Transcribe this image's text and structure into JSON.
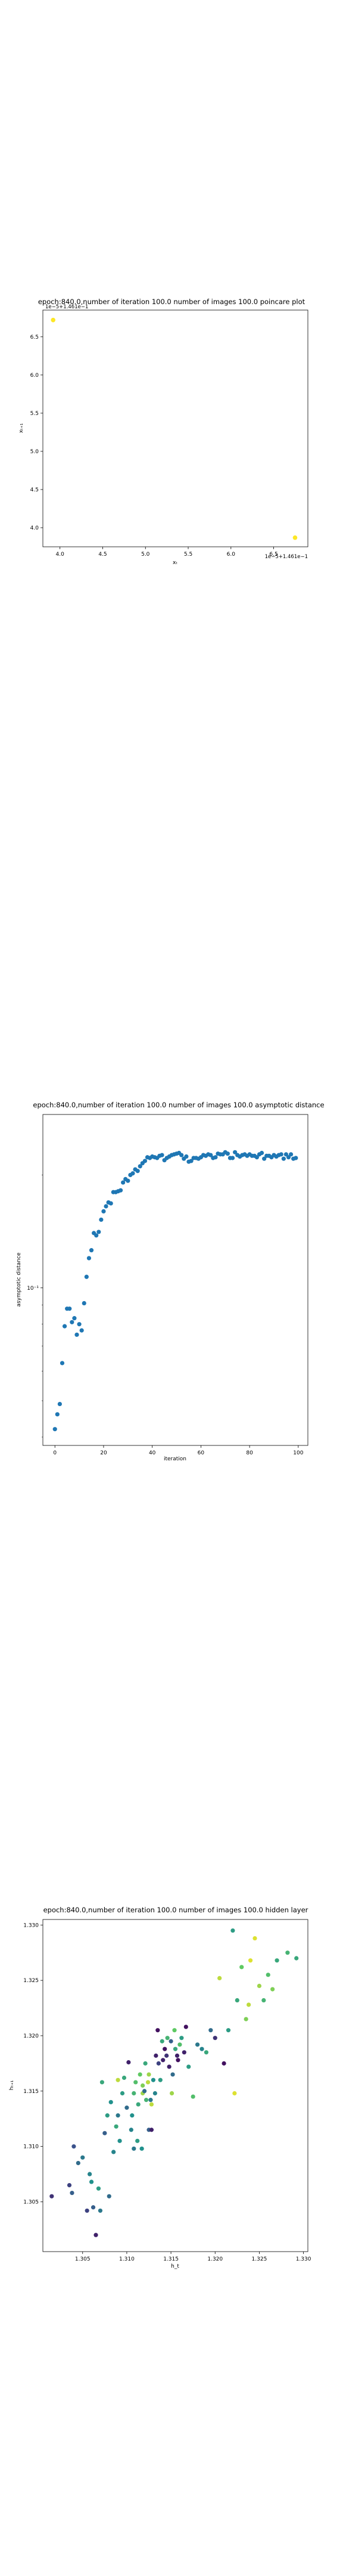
{
  "charts": [
    {
      "type": "scatter",
      "title": "epoch:840.0,number of iteration 100.0 number of images 100.0 poincare plot",
      "xlabel": "xₜ",
      "ylabel": "xₜ₊₁",
      "xlim": [
        3.8,
        6.9
      ],
      "ylim": [
        3.75,
        6.85
      ],
      "x_ticks": [
        4.0,
        4.5,
        5.0,
        5.5,
        6.0,
        6.5
      ],
      "x_tick_labels": [
        "4.0",
        "4.5",
        "5.0",
        "5.5",
        "6.0",
        "6.5"
      ],
      "y_ticks": [
        4.0,
        4.5,
        5.0,
        5.5,
        6.0,
        6.5
      ],
      "y_tick_labels": [
        "4.0",
        "4.5",
        "5.0",
        "5.5",
        "6.0",
        "6.5"
      ],
      "x_offset_text": "1e−5+1.461e−1",
      "y_offset_text": "1e−5+1.461e−1",
      "scale": "linear",
      "grid": false,
      "points": [
        {
          "x": 3.92,
          "y": 6.72,
          "color": "#fde725"
        },
        {
          "x": 6.75,
          "y": 3.87,
          "color": "#fde725"
        }
      ]
    },
    {
      "type": "scatter",
      "title": "epoch:840.0,number of iteration 100.0  number of images 100.0 asymptotic distance",
      "xlabel": "iteration",
      "ylabel": "asymptotic distance",
      "xlim": [
        -4.95,
        103.95
      ],
      "ylim": [
        0.038,
        0.29
      ],
      "scale_y": "log",
      "x_ticks": [
        0,
        20,
        40,
        60,
        80,
        100
      ],
      "x_tick_labels": [
        "0",
        "20",
        "40",
        "60",
        "80",
        "100"
      ],
      "y_major_ticks": [
        0.1
      ],
      "y_tick_labels": [
        "10⁻¹"
      ],
      "y_minor_ticks": [
        0.04,
        0.05,
        0.06,
        0.07,
        0.08,
        0.09,
        0.2
      ],
      "grid": false,
      "marker_color": "#1f77b4",
      "x": [
        0,
        1,
        2,
        3,
        4,
        5,
        6,
        7,
        8,
        9,
        10,
        11,
        12,
        13,
        14,
        15,
        16,
        17,
        18,
        19,
        20,
        21,
        22,
        23,
        24,
        25,
        26,
        27,
        28,
        29,
        30,
        31,
        32,
        33,
        34,
        35,
        36,
        37,
        38,
        39,
        40,
        41,
        42,
        43,
        44,
        45,
        46,
        47,
        48,
        49,
        50,
        51,
        52,
        53,
        54,
        55,
        56,
        57,
        58,
        59,
        60,
        61,
        62,
        63,
        64,
        65,
        66,
        67,
        68,
        69,
        70,
        71,
        72,
        73,
        74,
        75,
        76,
        77,
        78,
        79,
        80,
        81,
        82,
        83,
        84,
        85,
        86,
        87,
        88,
        89,
        90,
        91,
        92,
        93,
        94,
        95,
        96,
        97,
        98,
        99
      ],
      "y": [
        0.042,
        0.046,
        0.049,
        0.063,
        0.079,
        0.088,
        0.088,
        0.081,
        0.083,
        0.075,
        0.08,
        0.077,
        0.091,
        0.107,
        0.12,
        0.126,
        0.14,
        0.138,
        0.141,
        0.152,
        0.16,
        0.165,
        0.169,
        0.168,
        0.18,
        0.18,
        0.181,
        0.182,
        0.191,
        0.195,
        0.193,
        0.2,
        0.202,
        0.207,
        0.205,
        0.211,
        0.215,
        0.218,
        0.223,
        0.222,
        0.224,
        0.223,
        0.222,
        0.225,
        0.226,
        0.219,
        0.222,
        0.224,
        0.226,
        0.227,
        0.228,
        0.229,
        0.226,
        0.221,
        0.224,
        0.217,
        0.218,
        0.222,
        0.222,
        0.221,
        0.223,
        0.226,
        0.225,
        0.227,
        0.226,
        0.222,
        0.223,
        0.228,
        0.227,
        0.227,
        0.23,
        0.228,
        0.222,
        0.222,
        0.23,
        0.226,
        0.224,
        0.226,
        0.227,
        0.225,
        0.227,
        0.225,
        0.225,
        0.223,
        0.227,
        0.229,
        0.221,
        0.225,
        0.225,
        0.223,
        0.226,
        0.224,
        0.226,
        0.227,
        0.221,
        0.227,
        0.223,
        0.227,
        0.221,
        0.222
      ]
    },
    {
      "type": "scatter",
      "title": "epoch:840.0,number of iteration 100.0  number of images 100.0 hidden layer",
      "xlabel": "h_t",
      "ylabel": "hₜ₊₁",
      "xlim": [
        1.3005,
        1.3305
      ],
      "ylim": [
        1.3005,
        1.3305
      ],
      "x_ticks": [
        1.305,
        1.31,
        1.315,
        1.32,
        1.325,
        1.33
      ],
      "x_tick_labels": [
        "1.305",
        "1.310",
        "1.315",
        "1.320",
        "1.325",
        "1.330"
      ],
      "y_ticks": [
        1.305,
        1.31,
        1.315,
        1.32,
        1.325,
        1.33
      ],
      "y_tick_labels": [
        "1.305",
        "1.310",
        "1.315",
        "1.320",
        "1.325",
        "1.330"
      ],
      "colormap": "viridis",
      "grid": false,
      "points": [
        [
          1.3015,
          1.3055,
          0.15
        ],
        [
          1.3035,
          1.3065,
          0.2
        ],
        [
          1.3038,
          1.3058,
          0.3
        ],
        [
          1.304,
          1.31,
          0.25
        ],
        [
          1.3045,
          1.3085,
          0.35
        ],
        [
          1.305,
          1.309,
          0.4
        ],
        [
          1.3055,
          1.3042,
          0.2
        ],
        [
          1.3058,
          1.3075,
          0.45
        ],
        [
          1.306,
          1.3068,
          0.5
        ],
        [
          1.3062,
          1.3045,
          0.3
        ],
        [
          1.3065,
          1.302,
          0.1
        ],
        [
          1.3068,
          1.3062,
          0.55
        ],
        [
          1.307,
          1.3042,
          0.4
        ],
        [
          1.3072,
          1.3158,
          0.6
        ],
        [
          1.3075,
          1.3112,
          0.3
        ],
        [
          1.3078,
          1.3128,
          0.55
        ],
        [
          1.308,
          1.3055,
          0.35
        ],
        [
          1.3082,
          1.314,
          0.5
        ],
        [
          1.3085,
          1.3095,
          0.45
        ],
        [
          1.3088,
          1.3118,
          0.6
        ],
        [
          1.309,
          1.3128,
          0.4
        ],
        [
          1.3092,
          1.3105,
          0.5
        ],
        [
          1.3095,
          1.3148,
          0.55
        ],
        [
          1.3097,
          1.3162,
          0.6
        ],
        [
          1.31,
          1.3135,
          0.35
        ],
        [
          1.3102,
          1.3176,
          0.1
        ],
        [
          1.3105,
          1.3115,
          0.45
        ],
        [
          1.3106,
          1.3128,
          0.5
        ],
        [
          1.3108,
          1.3148,
          0.65
        ],
        [
          1.311,
          1.3158,
          0.7
        ],
        [
          1.3112,
          1.3105,
          0.55
        ],
        [
          1.3113,
          1.3138,
          0.6
        ],
        [
          1.3115,
          1.3165,
          0.75
        ],
        [
          1.3117,
          1.3098,
          0.5
        ],
        [
          1.3118,
          1.3148,
          0.85
        ],
        [
          1.312,
          1.315,
          0.35
        ],
        [
          1.3121,
          1.3175,
          0.6
        ],
        [
          1.3122,
          1.3142,
          0.65
        ],
        [
          1.3124,
          1.3158,
          0.9
        ],
        [
          1.3125,
          1.3115,
          0.3
        ],
        [
          1.3127,
          1.3142,
          0.4
        ],
        [
          1.3128,
          1.3115,
          0.1
        ],
        [
          1.313,
          1.316,
          0.5
        ],
        [
          1.3132,
          1.3148,
          0.45
        ],
        [
          1.3133,
          1.3182,
          0.1
        ],
        [
          1.3135,
          1.3205,
          0.05
        ],
        [
          1.3136,
          1.3175,
          0.2
        ],
        [
          1.3138,
          1.316,
          0.55
        ],
        [
          1.314,
          1.3195,
          0.6
        ],
        [
          1.3141,
          1.3178,
          0.1
        ],
        [
          1.3143,
          1.3188,
          0.05
        ],
        [
          1.3145,
          1.3182,
          0.15
        ],
        [
          1.3146,
          1.3198,
          0.65
        ],
        [
          1.3148,
          1.3172,
          0.1
        ],
        [
          1.315,
          1.3195,
          0.3
        ],
        [
          1.3151,
          1.3148,
          0.85
        ],
        [
          1.3152,
          1.3165,
          0.35
        ],
        [
          1.3154,
          1.3205,
          0.75
        ],
        [
          1.3155,
          1.3188,
          0.6
        ],
        [
          1.3157,
          1.3182,
          0.1
        ],
        [
          1.3158,
          1.3178,
          0.05
        ],
        [
          1.316,
          1.3192,
          0.7
        ],
        [
          1.3162,
          1.3198,
          0.55
        ],
        [
          1.3165,
          1.3185,
          0.1
        ],
        [
          1.3167,
          1.3208,
          0.05
        ],
        [
          1.317,
          1.3172,
          0.55
        ],
        [
          1.3175,
          1.3145,
          0.7
        ],
        [
          1.318,
          1.3192,
          0.4
        ],
        [
          1.3185,
          1.3188,
          0.45
        ],
        [
          1.319,
          1.3185,
          0.6
        ],
        [
          1.3195,
          1.3205,
          0.35
        ],
        [
          1.32,
          1.3198,
          0.15
        ],
        [
          1.3205,
          1.3252,
          0.9
        ],
        [
          1.321,
          1.3175,
          0.05
        ],
        [
          1.3215,
          1.3205,
          0.55
        ],
        [
          1.322,
          1.3295,
          0.55
        ],
        [
          1.3225,
          1.3232,
          0.6
        ],
        [
          1.323,
          1.3262,
          0.75
        ],
        [
          1.3235,
          1.3215,
          0.8
        ],
        [
          1.324,
          1.3268,
          0.95
        ],
        [
          1.3245,
          1.3288,
          0.95
        ],
        [
          1.325,
          1.3245,
          0.85
        ],
        [
          1.3255,
          1.3232,
          0.65
        ],
        [
          1.326,
          1.3255,
          0.7
        ],
        [
          1.3265,
          1.3242,
          0.8
        ],
        [
          1.327,
          1.3268,
          0.6
        ],
        [
          1.3282,
          1.3275,
          0.65
        ],
        [
          1.3292,
          1.327,
          0.6
        ],
        [
          1.3108,
          1.3098,
          0.4
        ],
        [
          1.3118,
          1.3155,
          0.8
        ],
        [
          1.3125,
          1.3165,
          0.85
        ],
        [
          1.3128,
          1.3138,
          0.9
        ],
        [
          1.309,
          1.316,
          0.9
        ],
        [
          1.3222,
          1.3148,
          0.95
        ],
        [
          1.3238,
          1.3228,
          0.9
        ]
      ]
    }
  ]
}
